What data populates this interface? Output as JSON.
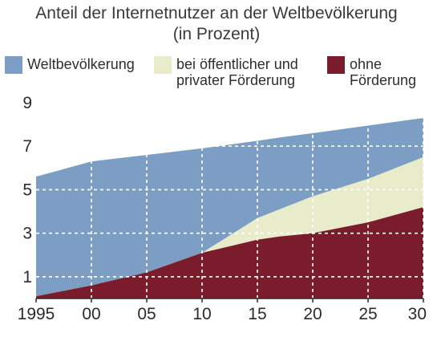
{
  "chart_data": {
    "type": "area",
    "title": "Anteil der Internetnutzer an der Weltbevölkerung",
    "subtitle": "(in Prozent)",
    "xlabel": "",
    "ylabel": "",
    "x": [
      1995,
      2000,
      2005,
      2010,
      2015,
      2017,
      2020,
      2025,
      2030
    ],
    "x_tick_labels": [
      "1995",
      "00",
      "05",
      "10",
      "15",
      "20",
      "25",
      "30"
    ],
    "x_tick_values": [
      1995,
      2000,
      2005,
      2010,
      2015,
      2020,
      2025,
      2030
    ],
    "y_tick_values": [
      1,
      3,
      5,
      7,
      9
    ],
    "ylim": [
      0,
      9
    ],
    "xlim": [
      1995,
      2030
    ],
    "grid": true,
    "legend_position": "top",
    "series": [
      {
        "name": "Weltbevölkerung",
        "color": "#7d9ec4",
        "values": [
          5.6,
          6.3,
          6.6,
          6.9,
          7.25,
          7.4,
          7.6,
          7.95,
          8.3
        ]
      },
      {
        "name": "bei öffentlicher und privater Förderung",
        "color": "#e8ecca",
        "values": [
          0.1,
          0.6,
          1.2,
          2.1,
          3.7,
          4.1,
          4.7,
          5.5,
          6.5
        ]
      },
      {
        "name": "ohne Förderung",
        "color": "#7a1c2b",
        "values": [
          0.1,
          0.6,
          1.2,
          2.1,
          2.7,
          2.85,
          3.0,
          3.5,
          4.2
        ]
      }
    ]
  },
  "legend": {
    "world": "Weltbevölkerung",
    "funded": "bei öffentlicher und\nprivater Förderung",
    "unfunded": "ohne\nFörderung"
  },
  "colors": {
    "grid": "#ffffff",
    "axis": "#2b2b2b"
  }
}
